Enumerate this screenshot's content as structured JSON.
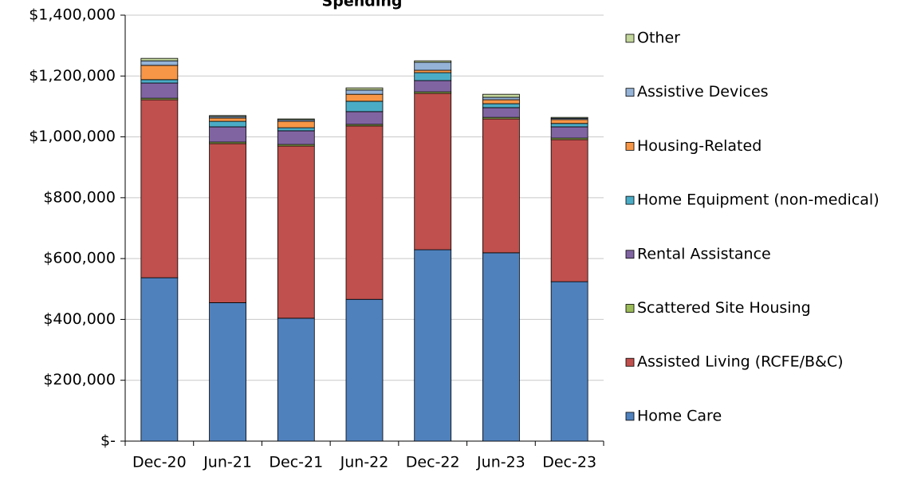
{
  "chart_data": {
    "type": "stacked_bar",
    "title": "Spending",
    "categories": [
      "Dec-20",
      "Jun-21",
      "Dec-21",
      "Jun-22",
      "Dec-22",
      "Jun-23",
      "Dec-23"
    ],
    "series": [
      {
        "name": "Home Care",
        "color": "#4f81bd",
        "values": [
          537000,
          455000,
          404000,
          466000,
          629000,
          619000,
          524000
        ]
      },
      {
        "name": "Assisted Living (RCFE/B&C)",
        "color": "#c0504d",
        "values": [
          585000,
          523000,
          566000,
          570000,
          514000,
          440000,
          467000
        ]
      },
      {
        "name": "Scattered Site Housing",
        "color": "#9bbb59",
        "values": [
          5000,
          5000,
          5000,
          5000,
          5000,
          5000,
          5000
        ]
      },
      {
        "name": "Rental Assistance",
        "color": "#8064a2",
        "values": [
          50000,
          50000,
          45000,
          42000,
          37000,
          32000,
          37000
        ]
      },
      {
        "name": "Home Equipment (non-medical)",
        "color": "#4bacc6",
        "values": [
          11000,
          18000,
          10000,
          34000,
          26000,
          13000,
          11000
        ]
      },
      {
        "name": "Housing-Related",
        "color": "#f79646",
        "values": [
          47000,
          11000,
          21000,
          23000,
          8000,
          13000,
          13000
        ]
      },
      {
        "name": "Assistive Devices",
        "color": "#95b3d7",
        "values": [
          15000,
          5000,
          5000,
          14000,
          26000,
          8000,
          4000
        ]
      },
      {
        "name": "Other",
        "color": "#c3d69b",
        "values": [
          8000,
          3000,
          3000,
          7000,
          5000,
          10000,
          3000
        ]
      }
    ],
    "ylim": [
      0,
      1400000
    ],
    "yticks": [
      {
        "value": 0,
        "label": "$-"
      },
      {
        "value": 200000,
        "label": "$200,000"
      },
      {
        "value": 400000,
        "label": "$400,000"
      },
      {
        "value": 600000,
        "label": "$600,000"
      },
      {
        "value": 800000,
        "label": "$800,000"
      },
      {
        "value": 1000000,
        "label": "$1,000,000"
      },
      {
        "value": 1200000,
        "label": "$1,200,000"
      },
      {
        "value": 1400000,
        "label": "$1,400,000"
      }
    ],
    "grid": true,
    "legend": "right"
  }
}
